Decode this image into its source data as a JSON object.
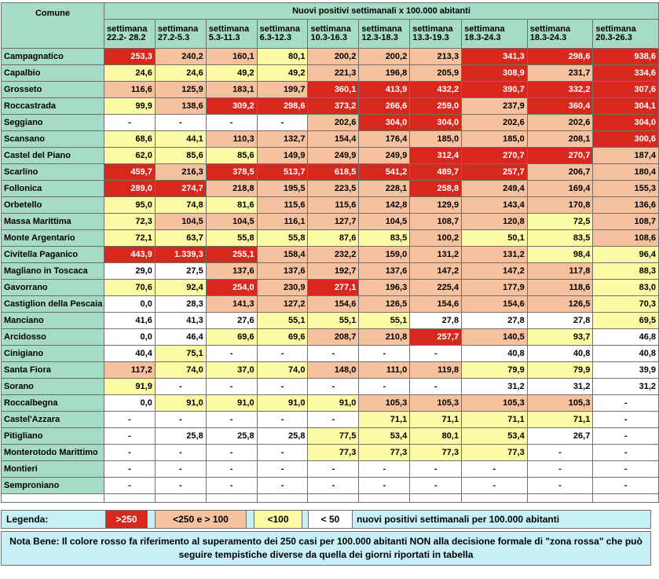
{
  "table": {
    "title": "Nuovi positivi settimanali x 100.000 abitanti",
    "comune_header": "Comune",
    "week_word": "settimana",
    "week_labels": [
      "22.2- 28.2",
      "27.2-5.3",
      "5.3-11.3",
      "6.3-12.3",
      "10.3-16.3",
      "12.3-18.3",
      "13.3-19.3",
      "18.3-24.3",
      "18.3-24.3",
      "20.3-26.3"
    ],
    "rows": [
      {
        "comune": "Campagnatico",
        "cells": [
          [
            "253,3",
            "r"
          ],
          [
            "240,2",
            "o"
          ],
          [
            "160,1",
            "o"
          ],
          [
            "80,1",
            "y"
          ],
          [
            "200,2",
            "o"
          ],
          [
            "200,2",
            "o"
          ],
          [
            "213,3",
            "o"
          ],
          [
            "341,3",
            "r"
          ],
          [
            "298,6",
            "r"
          ],
          [
            "938,6",
            "r"
          ]
        ]
      },
      {
        "comune": "Capalbio",
        "cells": [
          [
            "24,6",
            "y"
          ],
          [
            "24,6",
            "y"
          ],
          [
            "49,2",
            "y"
          ],
          [
            "49,2",
            "y"
          ],
          [
            "221,3",
            "o"
          ],
          [
            "196,8",
            "o"
          ],
          [
            "205,9",
            "o"
          ],
          [
            "308,9",
            "r"
          ],
          [
            "231,7",
            "o"
          ],
          [
            "334,6",
            "r"
          ]
        ]
      },
      {
        "comune": "Grosseto",
        "cells": [
          [
            "116,6",
            "o"
          ],
          [
            "125,9",
            "o"
          ],
          [
            "183,1",
            "o"
          ],
          [
            "199,7",
            "o"
          ],
          [
            "360,1",
            "r"
          ],
          [
            "413,9",
            "r"
          ],
          [
            "432,2",
            "r"
          ],
          [
            "390,7",
            "r"
          ],
          [
            "332,2",
            "r"
          ],
          [
            "307,6",
            "r"
          ]
        ]
      },
      {
        "comune": "Roccastrada",
        "cells": [
          [
            "99,9",
            "y"
          ],
          [
            "138,6",
            "o"
          ],
          [
            "309,2",
            "r"
          ],
          [
            "298,6",
            "r"
          ],
          [
            "373,2",
            "r"
          ],
          [
            "266,6",
            "r"
          ],
          [
            "259,0",
            "r"
          ],
          [
            "237,9",
            "o"
          ],
          [
            "360,4",
            "r"
          ],
          [
            "304,1",
            "r"
          ]
        ]
      },
      {
        "comune": "Seggiano",
        "cells": [
          [
            "-",
            "w"
          ],
          [
            "-",
            "w"
          ],
          [
            "-",
            "w"
          ],
          [
            "-",
            "w"
          ],
          [
            "202,6",
            "o"
          ],
          [
            "304,0",
            "r"
          ],
          [
            "304,0",
            "r"
          ],
          [
            "202,6",
            "o"
          ],
          [
            "202,6",
            "o"
          ],
          [
            "304,0",
            "r"
          ]
        ]
      },
      {
        "comune": "Scansano",
        "cells": [
          [
            "68,6",
            "y"
          ],
          [
            "44,1",
            "y"
          ],
          [
            "110,3",
            "o"
          ],
          [
            "132,7",
            "o"
          ],
          [
            "154,4",
            "o"
          ],
          [
            "176,4",
            "o"
          ],
          [
            "185,0",
            "o"
          ],
          [
            "185,0",
            "o"
          ],
          [
            "208,1",
            "o"
          ],
          [
            "300,6",
            "r"
          ]
        ]
      },
      {
        "comune": "Castel del Piano",
        "cells": [
          [
            "62,0",
            "y"
          ],
          [
            "85,6",
            "y"
          ],
          [
            "85,6",
            "y"
          ],
          [
            "149,9",
            "o"
          ],
          [
            "249,9",
            "o"
          ],
          [
            "249,9",
            "o"
          ],
          [
            "312,4",
            "r"
          ],
          [
            "270,7",
            "r"
          ],
          [
            "270,7",
            "r"
          ],
          [
            "187,4",
            "o"
          ]
        ]
      },
      {
        "comune": "Scarlino",
        "cells": [
          [
            "459,7",
            "r"
          ],
          [
            "216,3",
            "o"
          ],
          [
            "378,5",
            "r"
          ],
          [
            "513,7",
            "r"
          ],
          [
            "618,5",
            "r"
          ],
          [
            "541,2",
            "r"
          ],
          [
            "489,7",
            "r"
          ],
          [
            "257,7",
            "r"
          ],
          [
            "206,7",
            "o"
          ],
          [
            "180,4",
            "o"
          ]
        ]
      },
      {
        "comune": "Follonica",
        "cells": [
          [
            "289,0",
            "r"
          ],
          [
            "274,7",
            "r"
          ],
          [
            "218,8",
            "o"
          ],
          [
            "195,5",
            "o"
          ],
          [
            "223,5",
            "o"
          ],
          [
            "228,1",
            "o"
          ],
          [
            "258,8",
            "r"
          ],
          [
            "249,4",
            "o"
          ],
          [
            "169,4",
            "o"
          ],
          [
            "155,3",
            "o"
          ]
        ]
      },
      {
        "comune": "Orbetello",
        "cells": [
          [
            "95,0",
            "y"
          ],
          [
            "74,8",
            "y"
          ],
          [
            "81,6",
            "y"
          ],
          [
            "115,6",
            "o"
          ],
          [
            "115,6",
            "o"
          ],
          [
            "142,8",
            "o"
          ],
          [
            "129,9",
            "o"
          ],
          [
            "143,4",
            "o"
          ],
          [
            "170,8",
            "o"
          ],
          [
            "136,6",
            "o"
          ]
        ]
      },
      {
        "comune": "Massa Marittima",
        "cells": [
          [
            "72,3",
            "y"
          ],
          [
            "104,5",
            "o"
          ],
          [
            "104,5",
            "o"
          ],
          [
            "116,1",
            "o"
          ],
          [
            "127,7",
            "o"
          ],
          [
            "104,5",
            "o"
          ],
          [
            "108,7",
            "o"
          ],
          [
            "120,8",
            "o"
          ],
          [
            "72,5",
            "y"
          ],
          [
            "108,7",
            "o"
          ]
        ]
      },
      {
        "comune": "Monte Argentario",
        "cells": [
          [
            "72,1",
            "y"
          ],
          [
            "63,7",
            "y"
          ],
          [
            "55,8",
            "y"
          ],
          [
            "55,8",
            "y"
          ],
          [
            "87,6",
            "y"
          ],
          [
            "83,5",
            "y"
          ],
          [
            "100,2",
            "o"
          ],
          [
            "50,1",
            "y"
          ],
          [
            "83,5",
            "y"
          ],
          [
            "108,6",
            "o"
          ]
        ]
      },
      {
        "comune": "Civitella Paganico",
        "cells": [
          [
            "443,9",
            "r"
          ],
          [
            "1.339,3",
            "r"
          ],
          [
            "255,1",
            "r"
          ],
          [
            "158,4",
            "o"
          ],
          [
            "232,2",
            "o"
          ],
          [
            "159,0",
            "o"
          ],
          [
            "131,2",
            "o"
          ],
          [
            "131,2",
            "o"
          ],
          [
            "98,4",
            "y"
          ],
          [
            "96,4",
            "y"
          ]
        ]
      },
      {
        "comune": "Magliano in Toscaca",
        "cells": [
          [
            "29,0",
            "w"
          ],
          [
            "27,5",
            "w"
          ],
          [
            "137,6",
            "o"
          ],
          [
            "137,6",
            "o"
          ],
          [
            "192,7",
            "o"
          ],
          [
            "137,6",
            "o"
          ],
          [
            "147,2",
            "o"
          ],
          [
            "147,2",
            "o"
          ],
          [
            "117,8",
            "o"
          ],
          [
            "88,3",
            "y"
          ]
        ]
      },
      {
        "comune": "Gavorrano",
        "cells": [
          [
            "70,6",
            "y"
          ],
          [
            "92,4",
            "y"
          ],
          [
            "254,0",
            "r"
          ],
          [
            "230,9",
            "o"
          ],
          [
            "277,1",
            "r"
          ],
          [
            "196,3",
            "o"
          ],
          [
            "225,4",
            "o"
          ],
          [
            "177,9",
            "o"
          ],
          [
            "118,6",
            "o"
          ],
          [
            "83,0",
            "y"
          ]
        ]
      },
      {
        "comune": "Castiglion della Pescaia",
        "cells": [
          [
            "0,0",
            "w"
          ],
          [
            "28,3",
            "w"
          ],
          [
            "141,3",
            "o"
          ],
          [
            "127,2",
            "o"
          ],
          [
            "154,6",
            "o"
          ],
          [
            "126,5",
            "o"
          ],
          [
            "154,6",
            "o"
          ],
          [
            "154,6",
            "o"
          ],
          [
            "126,5",
            "o"
          ],
          [
            "70,3",
            "y"
          ]
        ]
      },
      {
        "comune": "Manciano",
        "cells": [
          [
            "41,6",
            "w"
          ],
          [
            "41,3",
            "w"
          ],
          [
            "27,6",
            "w"
          ],
          [
            "55,1",
            "y"
          ],
          [
            "55,1",
            "y"
          ],
          [
            "55,1",
            "y"
          ],
          [
            "27,8",
            "w"
          ],
          [
            "27,8",
            "w"
          ],
          [
            "27,8",
            "w"
          ],
          [
            "69,5",
            "y"
          ]
        ]
      },
      {
        "comune": "Arcidosso",
        "cells": [
          [
            "0,0",
            "w"
          ],
          [
            "46,4",
            "w"
          ],
          [
            "69,6",
            "y"
          ],
          [
            "69,6",
            "y"
          ],
          [
            "208,7",
            "o"
          ],
          [
            "210,8",
            "o"
          ],
          [
            "257,7",
            "r"
          ],
          [
            "140,5",
            "o"
          ],
          [
            "93,7",
            "y"
          ],
          [
            "46,8",
            "w"
          ]
        ]
      },
      {
        "comune": "Cinigiano",
        "cells": [
          [
            "40,4",
            "w"
          ],
          [
            "75,1",
            "y"
          ],
          [
            "-",
            "w"
          ],
          [
            "-",
            "w"
          ],
          [
            "-",
            "w"
          ],
          [
            "-",
            "w"
          ],
          [
            "-",
            "w"
          ],
          [
            "40,8",
            "w"
          ],
          [
            "40,8",
            "w"
          ],
          [
            "40,8",
            "w"
          ]
        ]
      },
      {
        "comune": "Santa Fiora",
        "cells": [
          [
            "117,2",
            "o"
          ],
          [
            "74,0",
            "y"
          ],
          [
            "37,0",
            "y"
          ],
          [
            "74,0",
            "y"
          ],
          [
            "148,0",
            "o"
          ],
          [
            "111,0",
            "o"
          ],
          [
            "119,8",
            "o"
          ],
          [
            "79,9",
            "y"
          ],
          [
            "79,9",
            "y"
          ],
          [
            "39,9",
            "w"
          ]
        ]
      },
      {
        "comune": "Sorano",
        "cells": [
          [
            "91,9",
            "y"
          ],
          [
            "-",
            "w"
          ],
          [
            "-",
            "w"
          ],
          [
            "-",
            "w"
          ],
          [
            "-",
            "w"
          ],
          [
            "-",
            "w"
          ],
          [
            "-",
            "w"
          ],
          [
            "31,2",
            "w"
          ],
          [
            "31,2",
            "w"
          ],
          [
            "31,2",
            "w"
          ]
        ]
      },
      {
        "comune": "Roccalbegna",
        "cells": [
          [
            "0,0",
            "w"
          ],
          [
            "91,0",
            "y"
          ],
          [
            "91,0",
            "y"
          ],
          [
            "91,0",
            "y"
          ],
          [
            "91,0",
            "y"
          ],
          [
            "105,3",
            "o"
          ],
          [
            "105,3",
            "o"
          ],
          [
            "105,3",
            "o"
          ],
          [
            "105,3",
            "o"
          ],
          [
            "-",
            "w"
          ]
        ]
      },
      {
        "comune": "Castel'Azzara",
        "cells": [
          [
            "-",
            "w"
          ],
          [
            "-",
            "w"
          ],
          [
            "-",
            "w"
          ],
          [
            "-",
            "w"
          ],
          [
            "-",
            "w"
          ],
          [
            "71,1",
            "y"
          ],
          [
            "71,1",
            "y"
          ],
          [
            "71,1",
            "y"
          ],
          [
            "71,1",
            "y"
          ],
          [
            "-",
            "w"
          ]
        ]
      },
      {
        "comune": "Pitigliano",
        "cells": [
          [
            "-",
            "w"
          ],
          [
            "25,8",
            "w"
          ],
          [
            "25,8",
            "w"
          ],
          [
            "25,8",
            "w"
          ],
          [
            "77,5",
            "y"
          ],
          [
            "53,4",
            "y"
          ],
          [
            "80,1",
            "y"
          ],
          [
            "53,4",
            "y"
          ],
          [
            "26,7",
            "w"
          ],
          [
            "-",
            "w"
          ]
        ]
      },
      {
        "comune": "Monterotodo Marittimo",
        "cells": [
          [
            "-",
            "w"
          ],
          [
            "-",
            "w"
          ],
          [
            "-",
            "w"
          ],
          [
            "-",
            "w"
          ],
          [
            "77,3",
            "y"
          ],
          [
            "77,3",
            "y"
          ],
          [
            "77,3",
            "y"
          ],
          [
            "77,3",
            "y"
          ],
          [
            "-",
            "w"
          ],
          [
            "-",
            "w"
          ]
        ]
      },
      {
        "comune": "Montieri",
        "cells": [
          [
            "-",
            "w"
          ],
          [
            "-",
            "w"
          ],
          [
            "-",
            "w"
          ],
          [
            "-",
            "w"
          ],
          [
            "-",
            "w"
          ],
          [
            "-",
            "w"
          ],
          [
            "-",
            "w"
          ],
          [
            "-",
            "w"
          ],
          [
            "-",
            "w"
          ],
          [
            "-",
            "w"
          ]
        ]
      },
      {
        "comune": "Semproniano",
        "cells": [
          [
            "-",
            "w"
          ],
          [
            "-",
            "w"
          ],
          [
            "-",
            "w"
          ],
          [
            "-",
            "w"
          ],
          [
            "-",
            "w"
          ],
          [
            "-",
            "w"
          ],
          [
            "-",
            "w"
          ],
          [
            "-",
            "w"
          ],
          [
            "-",
            "w"
          ],
          [
            "-",
            "w"
          ]
        ]
      }
    ]
  },
  "legend": {
    "label": "Legenda:",
    "red": ">250",
    "orange": "<250 e > 100",
    "yellow": "<100",
    "white": "< 50",
    "description": "nuovi positivi settimanali per 100.000 abitanti"
  },
  "note": {
    "line1": "Nota Bene: Il colore rosso fa riferimento al superamento dei 250 casi per 100.000 abitanti NON alla decisione formale di \"zona rossa\" che può",
    "line2": "seguire tempistiche diverse da quella dei giorni riportati in tabella"
  },
  "colors": {
    "red": "#d8281e",
    "orange": "#f6c19e",
    "yellow": "#fdfaa5",
    "white": "#ffffff",
    "header_green": "#a6dbc6",
    "legend_blue": "#c6eff6"
  }
}
